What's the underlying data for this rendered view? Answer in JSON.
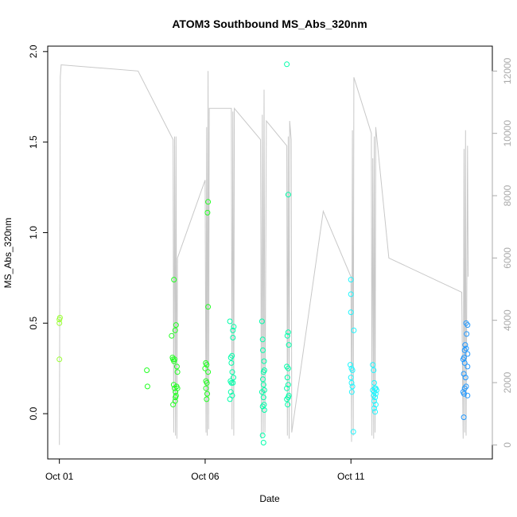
{
  "chart_data": {
    "type": "scatter",
    "title": "ATOM3 Southbound MS_Abs_320nm",
    "xlabel": "Date",
    "ylabel": "MS_Abs_320nm",
    "x_tick_labels": [
      "Oct 01",
      "Oct 06",
      "Oct 11"
    ],
    "x_tick_days": [
      1,
      6,
      11
    ],
    "xlim_days": [
      0.6,
      15.85
    ],
    "ylim": [
      -0.25,
      2.03
    ],
    "y_ticks": [
      "0.0",
      "0.5",
      "1.0",
      "1.5",
      "2.0"
    ],
    "y2_label": "",
    "y2lim": [
      -450,
      12800
    ],
    "y2_ticks": [
      "0",
      "2000",
      "4000",
      "6000",
      "8000",
      "10000",
      "12000"
    ],
    "grid": false,
    "series": [
      {
        "kind": "points",
        "color_scale": [
          "#9aff33",
          "#22ff22",
          "#00ffaa",
          "#22f6ff",
          "#2299ff"
        ],
        "points": [
          [
            1.0,
            0.52
          ],
          [
            1.0,
            0.5
          ],
          [
            1.02,
            0.53
          ],
          [
            1.0,
            0.3
          ],
          [
            4.0,
            0.24
          ],
          [
            4.02,
            0.15
          ],
          [
            4.85,
            0.43
          ],
          [
            4.88,
            0.31
          ],
          [
            4.9,
            0.3
          ],
          [
            4.93,
            0.74
          ],
          [
            4.95,
            0.3
          ],
          [
            4.97,
            0.46
          ],
          [
            5.0,
            0.49
          ],
          [
            4.92,
            0.16
          ],
          [
            4.95,
            0.14
          ],
          [
            4.98,
            0.12
          ],
          [
            5.0,
            0.1
          ],
          [
            4.9,
            0.05
          ],
          [
            4.97,
            0.07
          ],
          [
            5.03,
            0.26
          ],
          [
            5.05,
            0.23
          ],
          [
            5.02,
            0.15
          ],
          [
            4.98,
            0.09
          ],
          [
            4.93,
            0.29
          ],
          [
            5.05,
            0.14
          ],
          [
            6.02,
            0.28
          ],
          [
            6.05,
            0.27
          ],
          [
            6.08,
            1.11
          ],
          [
            6.1,
            1.17
          ],
          [
            6.1,
            0.59
          ],
          [
            6.03,
            0.18
          ],
          [
            6.06,
            0.17
          ],
          [
            6.07,
            0.11
          ],
          [
            6.1,
            0.23
          ],
          [
            6.05,
            0.08
          ],
          [
            6.0,
            0.25
          ],
          [
            6.03,
            0.14
          ],
          [
            6.85,
            0.51
          ],
          [
            6.88,
            0.31
          ],
          [
            6.92,
            0.32
          ],
          [
            6.95,
            0.46
          ],
          [
            6.95,
            0.42
          ],
          [
            6.98,
            0.48
          ],
          [
            6.9,
            0.28
          ],
          [
            6.93,
            0.23
          ],
          [
            6.87,
            0.18
          ],
          [
            6.9,
            0.17
          ],
          [
            6.95,
            0.17
          ],
          [
            6.88,
            0.12
          ],
          [
            6.93,
            0.1
          ],
          [
            6.85,
            0.08
          ],
          [
            6.97,
            0.2
          ],
          [
            7.95,
            0.51
          ],
          [
            7.97,
            0.41
          ],
          [
            7.98,
            0.35
          ],
          [
            8.0,
            0.23
          ],
          [
            8.02,
            0.29
          ],
          [
            8.03,
            0.24
          ],
          [
            7.98,
            0.19
          ],
          [
            8.0,
            0.16
          ],
          [
            8.03,
            0.13
          ],
          [
            7.95,
            0.12
          ],
          [
            8.0,
            0.09
          ],
          [
            8.02,
            0.05
          ],
          [
            7.97,
            0.04
          ],
          [
            8.03,
            0.02
          ],
          [
            7.97,
            -0.12
          ],
          [
            8.0,
            -0.16
          ],
          [
            8.8,
            1.93
          ],
          [
            8.85,
            1.21
          ],
          [
            8.85,
            0.45
          ],
          [
            8.82,
            0.43
          ],
          [
            8.87,
            0.38
          ],
          [
            8.8,
            0.26
          ],
          [
            8.85,
            0.25
          ],
          [
            8.82,
            0.2
          ],
          [
            8.85,
            0.16
          ],
          [
            8.8,
            0.14
          ],
          [
            8.87,
            0.1
          ],
          [
            8.85,
            0.09
          ],
          [
            8.8,
            0.08
          ],
          [
            8.83,
            0.05
          ],
          [
            11.0,
            0.74
          ],
          [
            11.0,
            0.66
          ],
          [
            11.0,
            0.56
          ],
          [
            11.1,
            0.46
          ],
          [
            10.98,
            0.27
          ],
          [
            11.02,
            0.25
          ],
          [
            11.05,
            0.24
          ],
          [
            11.0,
            0.2
          ],
          [
            11.02,
            0.17
          ],
          [
            11.05,
            0.15
          ],
          [
            11.03,
            0.12
          ],
          [
            11.08,
            -0.1
          ],
          [
            11.75,
            0.27
          ],
          [
            11.78,
            0.24
          ],
          [
            11.8,
            0.17
          ],
          [
            11.82,
            0.14
          ],
          [
            11.85,
            0.14
          ],
          [
            11.75,
            0.13
          ],
          [
            11.8,
            0.12
          ],
          [
            11.85,
            0.11
          ],
          [
            11.78,
            0.1
          ],
          [
            11.83,
            0.09
          ],
          [
            11.8,
            0.07
          ],
          [
            11.85,
            0.05
          ],
          [
            11.8,
            0.03
          ],
          [
            11.83,
            0.01
          ],
          [
            11.88,
            0.13
          ],
          [
            14.95,
            0.5
          ],
          [
            15.0,
            0.49
          ],
          [
            14.97,
            0.44
          ],
          [
            14.92,
            0.38
          ],
          [
            14.95,
            0.36
          ],
          [
            14.9,
            0.35
          ],
          [
            15.0,
            0.33
          ],
          [
            14.88,
            0.31
          ],
          [
            14.85,
            0.3
          ],
          [
            14.9,
            0.28
          ],
          [
            15.0,
            0.26
          ],
          [
            14.87,
            0.22
          ],
          [
            14.93,
            0.2
          ],
          [
            14.95,
            0.15
          ],
          [
            14.9,
            0.14
          ],
          [
            14.85,
            0.12
          ],
          [
            14.88,
            0.11
          ],
          [
            15.0,
            0.1
          ],
          [
            14.87,
            -0.02
          ]
        ]
      },
      {
        "kind": "altitude_line",
        "axis": "right",
        "color": "#c8c8c8",
        "points": [
          [
            1.0,
            0
          ],
          [
            1.03,
            11800
          ],
          [
            1.06,
            12200
          ],
          [
            3.7,
            12000
          ],
          [
            4.9,
            9800
          ],
          [
            4.92,
            400
          ],
          [
            4.95,
            9900
          ],
          [
            4.98,
            300
          ],
          [
            5.0,
            9900
          ],
          [
            5.03,
            200
          ],
          [
            5.05,
            6000
          ],
          [
            6.0,
            8500
          ],
          [
            6.03,
            400
          ],
          [
            6.05,
            10200
          ],
          [
            6.07,
            300
          ],
          [
            6.1,
            12000
          ],
          [
            6.12,
            500
          ],
          [
            6.14,
            10800
          ],
          [
            6.9,
            10800
          ],
          [
            6.92,
            500
          ],
          [
            6.95,
            10700
          ],
          [
            6.98,
            300
          ],
          [
            7.0,
            10800
          ],
          [
            7.9,
            9800
          ],
          [
            7.93,
            200
          ],
          [
            7.96,
            10600
          ],
          [
            7.99,
            300
          ],
          [
            8.02,
            11400
          ],
          [
            8.05,
            400
          ],
          [
            8.1,
            10400
          ],
          [
            8.8,
            9600
          ],
          [
            8.82,
            300
          ],
          [
            8.85,
            9900
          ],
          [
            8.88,
            200
          ],
          [
            8.9,
            10400
          ],
          [
            8.95,
            9800
          ],
          [
            8.97,
            400
          ],
          [
            10.05,
            7500
          ],
          [
            11.0,
            5400
          ],
          [
            11.02,
            100
          ],
          [
            11.05,
            10100
          ],
          [
            11.08,
            300
          ],
          [
            11.1,
            11800
          ],
          [
            11.7,
            10000
          ],
          [
            11.72,
            300
          ],
          [
            11.75,
            9200
          ],
          [
            11.78,
            200
          ],
          [
            11.8,
            9900
          ],
          [
            11.83,
            400
          ],
          [
            11.85,
            10200
          ],
          [
            12.3,
            6000
          ],
          [
            14.8,
            4900
          ],
          [
            14.85,
            200
          ],
          [
            14.88,
            9500
          ],
          [
            14.9,
            400
          ],
          [
            14.93,
            10100
          ],
          [
            14.95,
            300
          ],
          [
            15.0,
            9600
          ],
          [
            15.02,
            5400
          ]
        ]
      }
    ]
  }
}
